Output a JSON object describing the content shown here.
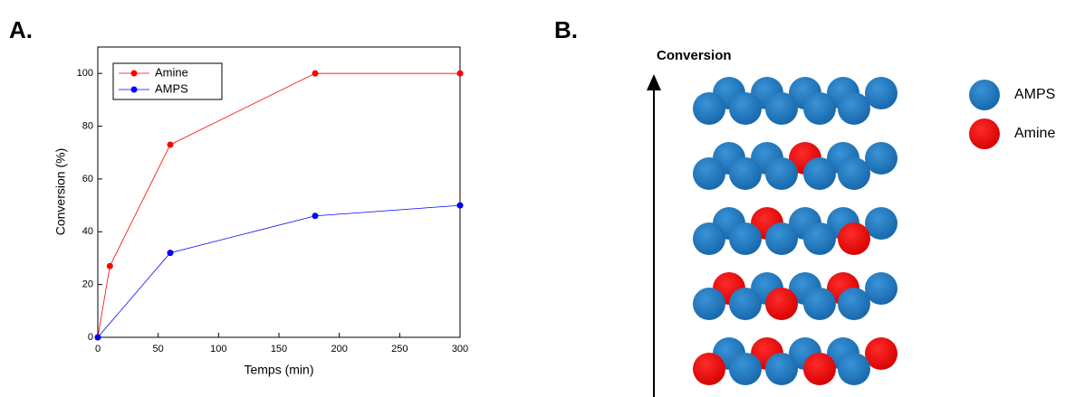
{
  "chart_data": {
    "type": "line",
    "x_label": "Temps (min)",
    "y_label": "Conversion (%)",
    "xlim": [
      0,
      300
    ],
    "xticks": [
      0,
      50,
      100,
      150,
      200,
      250,
      300
    ],
    "ylim": [
      0,
      110
    ],
    "yticks": [
      0,
      20,
      40,
      60,
      80,
      100
    ],
    "legend": "upper left",
    "series": [
      {
        "name": "Amine",
        "color": "#ff0000",
        "x": [
          0,
          10,
          60,
          180,
          300
        ],
        "values": [
          0,
          27,
          73,
          100,
          100
        ]
      },
      {
        "name": "AMPS",
        "color": "#0000ff",
        "x": [
          0,
          60,
          180,
          300
        ],
        "values": [
          0,
          32,
          46,
          50
        ]
      }
    ]
  },
  "panel_a": {
    "label": "A."
  },
  "panel_b": {
    "label": "B.",
    "axis_label": "Conversion",
    "legend": [
      "AMPS",
      "Amine"
    ]
  }
}
